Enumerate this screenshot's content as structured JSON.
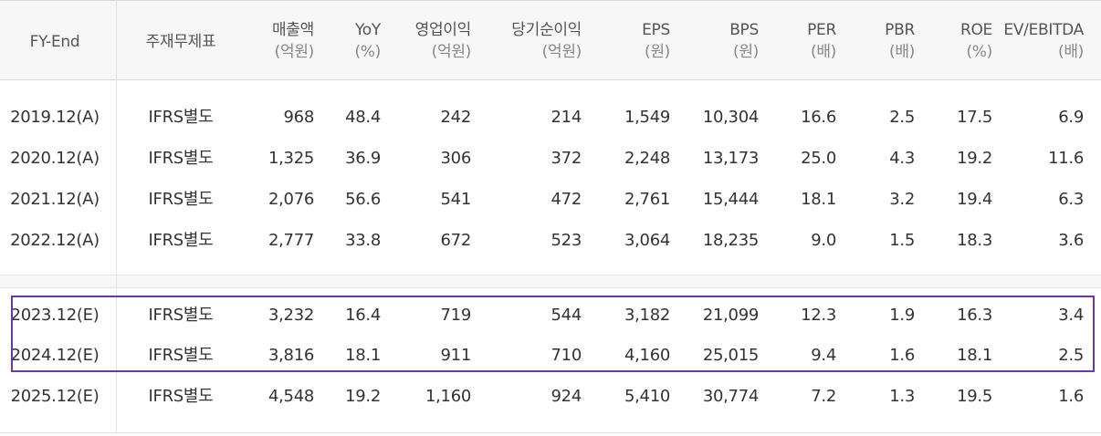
{
  "headers": [
    {
      "label": "FY-End",
      "unit": ""
    },
    {
      "label": "주재무제표",
      "unit": ""
    },
    {
      "label": "매출액",
      "unit": "(억원)"
    },
    {
      "label": "YoY",
      "unit": "(%)"
    },
    {
      "label": "영업이익",
      "unit": "(억원)"
    },
    {
      "label": "당기순이익",
      "unit": "(억원)"
    },
    {
      "label": "EPS",
      "unit": "(원)"
    },
    {
      "label": "BPS",
      "unit": "(원)"
    },
    {
      "label": "PER",
      "unit": "(배)"
    },
    {
      "label": "PBR",
      "unit": "(배)"
    },
    {
      "label": "ROE",
      "unit": "(%)"
    },
    {
      "label": "EV/EBITDA",
      "unit": "(배)"
    }
  ],
  "rows": [
    [
      "2019.12(A)",
      "IFRS별도",
      "968",
      "48.4",
      "242",
      "214",
      "1,549",
      "10,304",
      "16.6",
      "2.5",
      "17.5",
      "6.9"
    ],
    [
      "2020.12(A)",
      "IFRS별도",
      "1,325",
      "36.9",
      "306",
      "372",
      "2,248",
      "13,173",
      "25.0",
      "4.3",
      "19.2",
      "11.6"
    ],
    [
      "2021.12(A)",
      "IFRS별도",
      "2,076",
      "56.6",
      "541",
      "472",
      "2,761",
      "15,444",
      "18.1",
      "3.2",
      "19.4",
      "6.3"
    ],
    [
      "2022.12(A)",
      "IFRS별도",
      "2,777",
      "33.8",
      "672",
      "523",
      "3,064",
      "18,235",
      "9.0",
      "1.5",
      "18.3",
      "3.6"
    ],
    [
      "2023.12(E)",
      "IFRS별도",
      "3,232",
      "16.4",
      "719",
      "544",
      "3,182",
      "21,099",
      "12.3",
      "1.9",
      "16.3",
      "3.4"
    ],
    [
      "2024.12(E)",
      "IFRS별도",
      "3,816",
      "18.1",
      "911",
      "710",
      "4,160",
      "25,015",
      "9.4",
      "1.6",
      "18.1",
      "2.5"
    ],
    [
      "2025.12(E)",
      "IFRS별도",
      "4,548",
      "19.2",
      "1,160",
      "924",
      "5,410",
      "30,774",
      "7.2",
      "1.3",
      "19.5",
      "1.6"
    ]
  ],
  "highlight_color": "#6a3a9a"
}
